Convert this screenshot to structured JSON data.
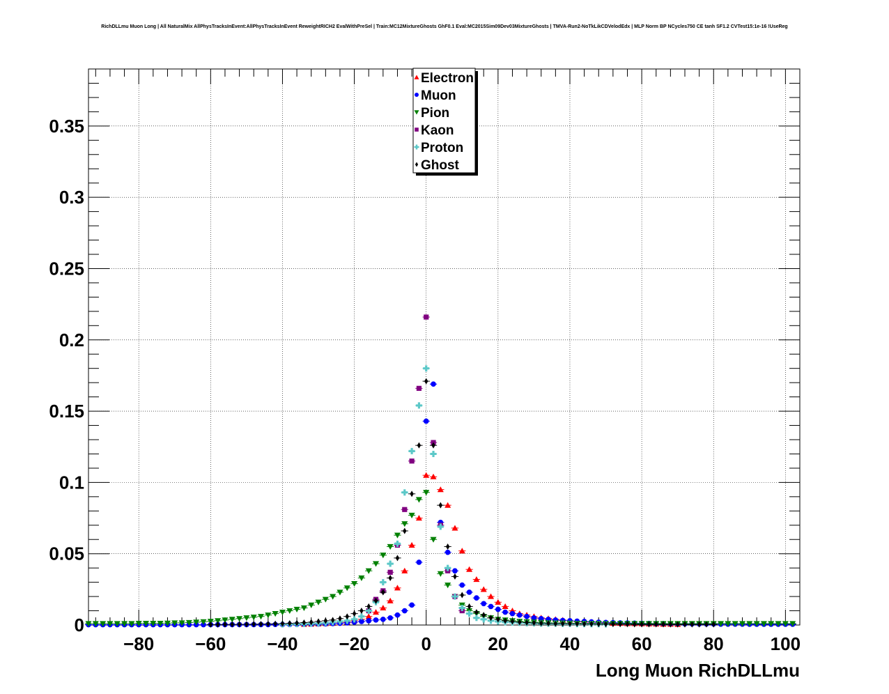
{
  "chart_data": {
    "type": "scatter",
    "title": "RichDLLmu Muon Long | All NaturalMix AllPhysTracksInEvent:AllPhysTracksInEvent ReweightRICH2 EvalWithPreSel | Train:MC12MixtureGhosts GhF0.1 Eval:MC2015Sim09Dev03MixtureGhosts | TMVA-Run2-NoTkLikCDVelodEdx | MLP Norm BP NCycles750 CE tanh SF1.2 CVTest15:1e-16 !UseReg",
    "xlabel": "Long Muon RichDLLmu",
    "ylabel": "",
    "xlim": [
      -94,
      104
    ],
    "ylim": [
      0,
      0.39
    ],
    "grid": true,
    "legend_position": "top-center",
    "x_ticks": [
      -80,
      -60,
      -40,
      -20,
      0,
      20,
      40,
      60,
      80,
      100
    ],
    "x_tick_labels": [
      "−80",
      "−60",
      "−40",
      "−20",
      "0",
      "20",
      "40",
      "60",
      "80",
      "100"
    ],
    "y_ticks": [
      0,
      0.05,
      0.1,
      0.15,
      0.2,
      0.25,
      0.3,
      0.35
    ],
    "y_tick_labels": [
      "0",
      "0.05",
      "0.1",
      "0.15",
      "0.2",
      "0.25",
      "0.3",
      "0.35"
    ],
    "series": [
      {
        "name": "Electron",
        "color": "#ff0000",
        "marker": "triangle-up",
        "x": [
          -34,
          -32,
          -30,
          -28,
          -26,
          -24,
          -22,
          -20,
          -18,
          -16,
          -14,
          -12,
          -10,
          -8,
          -6,
          -4,
          -2,
          0,
          2,
          4,
          6,
          8,
          10,
          12,
          14,
          16,
          18,
          20,
          22,
          24,
          26,
          28,
          30,
          32,
          34,
          36,
          38,
          40,
          42,
          44,
          46,
          48,
          50,
          52,
          54,
          56,
          58,
          60,
          62,
          64,
          66,
          68,
          70
        ],
        "y": [
          0.0005,
          0.0006,
          0.0008,
          0.001,
          0.0012,
          0.0015,
          0.002,
          0.003,
          0.004,
          0.006,
          0.009,
          0.012,
          0.017,
          0.026,
          0.038,
          0.056,
          0.075,
          0.105,
          0.104,
          0.095,
          0.084,
          0.068,
          0.052,
          0.039,
          0.032,
          0.025,
          0.02,
          0.016,
          0.013,
          0.01,
          0.008,
          0.007,
          0.006,
          0.005,
          0.0045,
          0.004,
          0.0035,
          0.003,
          0.0025,
          0.002,
          0.002,
          0.0018,
          0.0015,
          0.0013,
          0.0012,
          0.001,
          0.001,
          0.0009,
          0.0008,
          0.0007,
          0.0006,
          0.0006,
          0.0005
        ]
      },
      {
        "name": "Muon",
        "color": "#0000ff",
        "marker": "circle",
        "x": [
          -94,
          -92,
          -90,
          -88,
          -86,
          -84,
          -82,
          -80,
          -78,
          -76,
          -74,
          -72,
          -70,
          -68,
          -66,
          -64,
          -62,
          -60,
          -58,
          -56,
          -54,
          -52,
          -50,
          -48,
          -46,
          -44,
          -42,
          -40,
          -38,
          -36,
          -34,
          -32,
          -30,
          -28,
          -26,
          -24,
          -22,
          -20,
          -18,
          -16,
          -14,
          -12,
          -10,
          -8,
          -6,
          -4,
          -2,
          0,
          2,
          4,
          6,
          8,
          10,
          12,
          14,
          16,
          18,
          20,
          22,
          24,
          26,
          28,
          30,
          32,
          34,
          36,
          38,
          40,
          42,
          44,
          46,
          48,
          50,
          52,
          54,
          56,
          58,
          60,
          62,
          64,
          66,
          68,
          70,
          72,
          74,
          76,
          78,
          80,
          82,
          84,
          86,
          88,
          90,
          92,
          94,
          96,
          98,
          100,
          102
        ],
        "y": [
          0.0002,
          0.0002,
          0.0002,
          0.0002,
          0.0002,
          0.0002,
          0.0002,
          0.0002,
          0.0002,
          0.0002,
          0.0002,
          0.0002,
          0.0002,
          0.0002,
          0.0002,
          0.0002,
          0.0002,
          0.0003,
          0.0003,
          0.0003,
          0.0003,
          0.0003,
          0.0003,
          0.0003,
          0.0003,
          0.0003,
          0.0004,
          0.0004,
          0.0004,
          0.0005,
          0.0005,
          0.0006,
          0.0007,
          0.0008,
          0.001,
          0.0012,
          0.0015,
          0.002,
          0.0025,
          0.003,
          0.0035,
          0.004,
          0.005,
          0.007,
          0.01,
          0.014,
          0.044,
          0.143,
          0.169,
          0.072,
          0.051,
          0.038,
          0.028,
          0.023,
          0.019,
          0.015,
          0.013,
          0.011,
          0.009,
          0.008,
          0.007,
          0.006,
          0.005,
          0.0045,
          0.004,
          0.0035,
          0.0032,
          0.003,
          0.0027,
          0.0025,
          0.0022,
          0.002,
          0.0018,
          0.0017,
          0.0015,
          0.0014,
          0.0013,
          0.0012,
          0.0011,
          0.001,
          0.001,
          0.0009,
          0.0009,
          0.0008,
          0.0008,
          0.0007,
          0.0007,
          0.0007,
          0.0006,
          0.0006,
          0.0006,
          0.0006,
          0.0005,
          0.0005,
          0.0005,
          0.0005,
          0.0005,
          0.0005,
          0.0005
        ]
      },
      {
        "name": "Pion",
        "color": "#008000",
        "marker": "triangle-down",
        "x": [
          -94,
          -92,
          -90,
          -88,
          -86,
          -84,
          -82,
          -80,
          -78,
          -76,
          -74,
          -72,
          -70,
          -68,
          -66,
          -64,
          -62,
          -60,
          -58,
          -56,
          -54,
          -52,
          -50,
          -48,
          -46,
          -44,
          -42,
          -40,
          -38,
          -36,
          -34,
          -32,
          -30,
          -28,
          -26,
          -24,
          -22,
          -20,
          -18,
          -16,
          -14,
          -12,
          -10,
          -8,
          -6,
          -4,
          -2,
          0,
          2,
          4,
          6,
          8,
          10,
          12,
          14,
          16,
          18,
          20,
          22,
          24,
          26,
          28,
          30,
          32,
          34,
          36,
          38,
          40,
          42,
          44,
          46,
          48,
          50,
          52,
          54,
          56,
          58,
          60,
          62,
          64,
          66,
          68,
          70,
          72,
          74,
          76,
          78,
          80,
          82,
          84,
          86,
          88,
          90,
          92,
          94,
          96,
          98,
          100,
          102
        ],
        "y": [
          0.001,
          0.001,
          0.001,
          0.001,
          0.001,
          0.001,
          0.001,
          0.0012,
          0.0012,
          0.0012,
          0.0012,
          0.0013,
          0.0015,
          0.0015,
          0.0017,
          0.002,
          0.0023,
          0.0026,
          0.003,
          0.0035,
          0.004,
          0.0045,
          0.005,
          0.0055,
          0.006,
          0.007,
          0.008,
          0.009,
          0.01,
          0.011,
          0.012,
          0.014,
          0.016,
          0.018,
          0.02,
          0.023,
          0.026,
          0.029,
          0.033,
          0.038,
          0.043,
          0.049,
          0.055,
          0.063,
          0.071,
          0.077,
          0.088,
          0.093,
          0.06,
          0.036,
          0.028,
          0.02,
          0.014,
          0.01,
          0.008,
          0.006,
          0.005,
          0.004,
          0.0035,
          0.003,
          0.0026,
          0.0023,
          0.002,
          0.0018,
          0.0016,
          0.0015,
          0.0014,
          0.0013,
          0.0012,
          0.0012,
          0.0011,
          0.0011,
          0.001,
          0.001,
          0.001,
          0.001,
          0.001,
          0.001,
          0.001,
          0.001,
          0.001,
          0.001,
          0.001,
          0.001,
          0.001,
          0.001,
          0.001,
          0.001,
          0.001,
          0.001,
          0.001,
          0.001,
          0.001,
          0.001,
          0.001,
          0.001,
          0.001,
          0.001,
          0.001
        ]
      },
      {
        "name": "Kaon",
        "color": "#800080",
        "marker": "square",
        "x": [
          -16,
          -14,
          -12,
          -10,
          -8,
          -6,
          -4,
          -2,
          0,
          2,
          4,
          6,
          8,
          10
        ],
        "y": [
          0.01,
          0.018,
          0.024,
          0.037,
          0.056,
          0.081,
          0.115,
          0.166,
          0.216,
          0.128,
          0.07,
          0.038,
          0.02,
          0.01
        ]
      },
      {
        "name": "Proton",
        "color": "#5cc8c8",
        "marker": "cross",
        "x": [
          -40,
          -38,
          -36,
          -34,
          -32,
          -30,
          -28,
          -26,
          -24,
          -22,
          -20,
          -18,
          -16,
          -14,
          -12,
          -10,
          -8,
          -6,
          -4,
          -2,
          0,
          2,
          4,
          6,
          8,
          10,
          12,
          14,
          16,
          18,
          20,
          22,
          24,
          26,
          28,
          30,
          32,
          34,
          36,
          38,
          40,
          42,
          44,
          46,
          48,
          50
        ],
        "y": [
          0.0005,
          0.0006,
          0.0007,
          0.0008,
          0.001,
          0.0012,
          0.0015,
          0.002,
          0.0025,
          0.003,
          0.004,
          0.006,
          0.01,
          0.016,
          0.03,
          0.043,
          0.057,
          0.093,
          0.122,
          0.154,
          0.18,
          0.12,
          0.069,
          0.04,
          0.02,
          0.012,
          0.008,
          0.005,
          0.004,
          0.003,
          0.0025,
          0.002,
          0.0018,
          0.0015,
          0.0013,
          0.0012,
          0.001,
          0.001,
          0.0009,
          0.0008,
          0.0008,
          0.0007,
          0.0007,
          0.0006,
          0.0006,
          0.0005
        ]
      },
      {
        "name": "Ghost",
        "color": "#000000",
        "marker": "diamond",
        "x": [
          -60,
          -58,
          -56,
          -54,
          -52,
          -50,
          -48,
          -46,
          -44,
          -42,
          -40,
          -38,
          -36,
          -34,
          -32,
          -30,
          -28,
          -26,
          -24,
          -22,
          -20,
          -18,
          -16,
          -14,
          -12,
          -10,
          -8,
          -6,
          -4,
          -2,
          0,
          2,
          4,
          6,
          8,
          10,
          12,
          14,
          16,
          18,
          20,
          22,
          24,
          26,
          28,
          30,
          32,
          34,
          36,
          38,
          40,
          42,
          44,
          46,
          48,
          50,
          52,
          54,
          56,
          58,
          60,
          62,
          64,
          66,
          68,
          70,
          72,
          74,
          76,
          78,
          80
        ],
        "y": [
          0.0003,
          0.0003,
          0.0004,
          0.0004,
          0.0005,
          0.0005,
          0.0006,
          0.0007,
          0.0008,
          0.0009,
          0.001,
          0.0012,
          0.0014,
          0.0017,
          0.002,
          0.0025,
          0.003,
          0.0035,
          0.0045,
          0.006,
          0.008,
          0.01,
          0.013,
          0.017,
          0.023,
          0.033,
          0.047,
          0.066,
          0.092,
          0.126,
          0.171,
          0.126,
          0.084,
          0.055,
          0.034,
          0.021,
          0.013,
          0.009,
          0.007,
          0.005,
          0.004,
          0.003,
          0.0025,
          0.002,
          0.0017,
          0.0015,
          0.0013,
          0.0012,
          0.001,
          0.001,
          0.0009,
          0.0009,
          0.0008,
          0.0008,
          0.0007,
          0.0007,
          0.0006,
          0.0006,
          0.0006,
          0.0005,
          0.0005,
          0.0005,
          0.0005,
          0.0005,
          0.0004,
          0.0004,
          0.0004,
          0.0004,
          0.0004,
          0.0004,
          0.0004
        ]
      }
    ]
  }
}
